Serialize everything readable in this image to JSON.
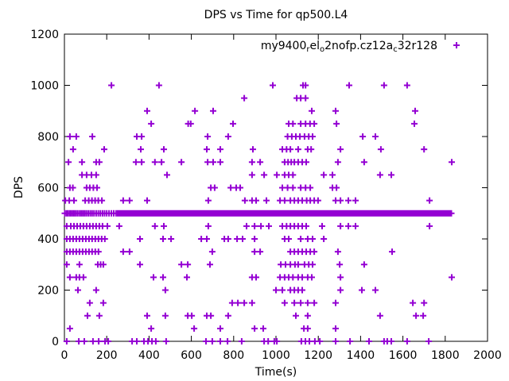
{
  "title": "DPS vs Time for qp500.L4",
  "axes": {
    "x": {
      "label": "Time(s)",
      "min": 0,
      "max": 2000,
      "ticks": [
        0,
        200,
        400,
        600,
        800,
        1000,
        1200,
        1400,
        1600,
        1800,
        2000
      ]
    },
    "y": {
      "label": "DPS",
      "min": 0,
      "max": 1200,
      "ticks": [
        0,
        200,
        400,
        600,
        800,
        1000,
        1200
      ]
    }
  },
  "legend": {
    "label_raw": "my9400_rel_o2nofp.cz12a_c32r128",
    "parts": [
      {
        "text": "my9400",
        "sub": false
      },
      {
        "text": "r",
        "sub": true
      },
      {
        "text": "el",
        "sub": false
      },
      {
        "text": "o",
        "sub": true
      },
      {
        "text": "2nofp.cz12a",
        "sub": false
      },
      {
        "text": "c",
        "sub": true
      },
      {
        "text": "32r128",
        "sub": false
      }
    ],
    "marker": "plus"
  },
  "colors": {
    "series": "#9400D3",
    "axis": "#000000",
    "background": "#ffffff"
  },
  "chart_data": {
    "type": "scatter",
    "title": "DPS vs Time for qp500.L4",
    "xlabel": "Time(s)",
    "ylabel": "DPS",
    "xlim": [
      0,
      2000
    ],
    "ylim": [
      0,
      1200
    ],
    "grid": false,
    "legend_position": "top-right-inside",
    "series": [
      {
        "name": "my9400_rel_o2nofp.cz12a_c32r128",
        "marker": "plus",
        "color": "#9400D3",
        "rows_by_dps": {
          "1000": [
            222,
            447,
            985,
            1128,
            1140,
            1346,
            1511,
            1620
          ],
          "950": [
            850,
            1098,
            1117,
            1140
          ],
          "900": [
            391,
            617,
            703,
            1169,
            1282,
            1658
          ],
          "850": [
            410,
            585,
            597,
            797,
            1060,
            1080,
            1117,
            1140,
            1161,
            1181,
            1286,
            1654
          ],
          "800": [
            26,
            56,
            132,
            342,
            365,
            677,
            774,
            1055,
            1075,
            1094,
            1113,
            1135,
            1155,
            1173,
            1410,
            1470
          ],
          "750": [
            41,
            188,
            361,
            470,
            673,
            737,
            891,
            1030,
            1050,
            1068,
            1105,
            1150,
            1166,
            1305,
            1496,
            1700
          ],
          "700": [
            19,
            83,
            150,
            165,
            338,
            365,
            428,
            459,
            553,
            677,
            703,
            737,
            887,
            925,
            1041,
            1057,
            1072,
            1087,
            1105,
            1124,
            1143,
            1293,
            1417,
            1831
          ],
          "650": [
            83,
            105,
            128,
            150,
            485,
            887,
            944,
            1004,
            1041,
            1060,
            1080,
            1226,
            1267,
            1492,
            1545
          ],
          "600": [
            26,
            40,
            105,
            120,
            137,
            154,
            692,
            710,
            786,
            812,
            831,
            1030,
            1055,
            1080,
            1117,
            1140,
            1162,
            1267,
            1286
          ],
          "550": [
            4,
            23,
            45,
            98,
            115,
            130,
            145,
            160,
            177,
            278,
            308,
            391,
            680,
            853,
            887,
            906,
            955,
            1019,
            1041,
            1068,
            1087,
            1105,
            1124,
            1145,
            1162,
            1181,
            1199,
            1282,
            1305,
            1342,
            1376,
            1726
          ],
          "450": [
            11,
            30,
            45,
            60,
            75,
            90,
            105,
            120,
            135,
            150,
            165,
            180,
            203,
            259,
            428,
            470,
            680,
            861,
            899,
            929,
            966,
            1030,
            1050,
            1068,
            1087,
            1105,
            1124,
            1143,
            1218,
            1305,
            1342,
            1376,
            1726
          ],
          "400": [
            11,
            26,
            41,
            56,
            71,
            86,
            101,
            116,
            131,
            146,
            161,
            176,
            191,
            357,
            466,
            504,
            647,
            673,
            756,
            774,
            816,
            842,
            899,
            1041,
            1060,
            1117,
            1150,
            1173,
            1226
          ],
          "350": [
            11,
            26,
            41,
            56,
            71,
            86,
            101,
            116,
            131,
            146,
            161,
            278,
            308,
            699,
            899,
            925,
            1068,
            1087,
            1105,
            1124,
            1143,
            1162,
            1181,
            1293,
            1549
          ],
          "300": [
            11,
            71,
            158,
            171,
            184,
            357,
            553,
            583,
            688,
            1023,
            1045,
            1068,
            1090,
            1105,
            1135,
            1155,
            1173,
            1301,
            1417
          ],
          "250": [
            26,
            56,
            71,
            90,
            421,
            466,
            579,
            887,
            906,
            1019,
            1041,
            1060,
            1080,
            1105,
            1124,
            1150,
            1169,
            1305,
            1831
          ],
          "200": [
            64,
            150,
            477,
            1000,
            1030,
            1068,
            1087,
            1105,
            1124,
            1305,
            1406,
            1470
          ],
          "150": [
            120,
            184,
            793,
            820,
            850,
            887,
            1041,
            1087,
            1117,
            1150,
            1181,
            1282,
            1647,
            1700
          ],
          "100": [
            109,
            165,
            391,
            477,
            583,
            602,
            673,
            692,
            774,
            1094,
            1150,
            1492,
            1662,
            1696
          ],
          "50": [
            26,
            410,
            613,
            737,
            899,
            940,
            1132,
            1150,
            1282
          ],
          "0": [
            11,
            68,
            94,
            135,
            162,
            192,
            207,
            320,
            342,
            376,
            395,
            414,
            432,
            481,
            669,
            699,
            737,
            771,
            838,
            944,
            963,
            992,
            1004,
            1120,
            1139,
            1158,
            1184,
            1207,
            1282,
            1350,
            1440,
            1511,
            1526,
            1545,
            1620,
            1722
          ]
        },
        "baseline": {
          "dps": 500,
          "lone_t": [
            2,
            10,
            17,
            25,
            32,
            40,
            47,
            55,
            63,
            72,
            80,
            88,
            96,
            104,
            113,
            122,
            131,
            140,
            150,
            160,
            170,
            180,
            190,
            200,
            211,
            222,
            233,
            244
          ],
          "segments": [
            [
              252,
              588
            ],
            [
              592,
              626
            ],
            [
              630,
              739
            ],
            [
              743,
              840
            ],
            [
              844,
              908
            ],
            [
              912,
              934
            ],
            [
              938,
              1002
            ],
            [
              1006,
              1038
            ],
            [
              1042,
              1072
            ],
            [
              1076,
              1108
            ],
            [
              1112,
              1156
            ],
            [
              1160,
              1232
            ],
            [
              1236,
              1278
            ],
            [
              1282,
              1329
            ],
            [
              1333,
              1404
            ],
            [
              1408,
              1489
            ],
            [
              1493,
              1602
            ],
            [
              1606,
              1723
            ],
            [
              1727,
              1831
            ]
          ],
          "step": 3
        }
      }
    ]
  }
}
